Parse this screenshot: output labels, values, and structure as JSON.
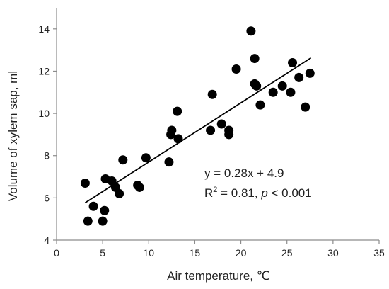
{
  "chart_data": {
    "type": "scatter",
    "xlabel": "Air temperature, ℃",
    "ylabel": "Volume of xylem sap, ml",
    "xlim": [
      0,
      35
    ],
    "ylim": [
      4,
      15
    ],
    "x_ticks": [
      0,
      5,
      10,
      15,
      20,
      25,
      30,
      35
    ],
    "y_ticks": [
      4,
      6,
      8,
      10,
      12,
      14
    ],
    "grid": false,
    "marker_color": "#000000",
    "points": [
      {
        "x": 3.1,
        "y": 6.7
      },
      {
        "x": 3.4,
        "y": 4.9
      },
      {
        "x": 4.0,
        "y": 5.6
      },
      {
        "x": 5.0,
        "y": 4.9
      },
      {
        "x": 5.2,
        "y": 5.4
      },
      {
        "x": 5.3,
        "y": 6.9
      },
      {
        "x": 6.0,
        "y": 6.8
      },
      {
        "x": 6.4,
        "y": 6.5
      },
      {
        "x": 6.8,
        "y": 6.2
      },
      {
        "x": 7.2,
        "y": 7.8
      },
      {
        "x": 8.8,
        "y": 6.6
      },
      {
        "x": 9.0,
        "y": 6.5
      },
      {
        "x": 9.7,
        "y": 7.9
      },
      {
        "x": 12.2,
        "y": 7.7
      },
      {
        "x": 12.4,
        "y": 9.0
      },
      {
        "x": 12.5,
        "y": 9.2
      },
      {
        "x": 13.1,
        "y": 10.1
      },
      {
        "x": 13.2,
        "y": 8.8
      },
      {
        "x": 16.7,
        "y": 9.2
      },
      {
        "x": 16.9,
        "y": 10.9
      },
      {
        "x": 17.9,
        "y": 9.5
      },
      {
        "x": 18.7,
        "y": 9.2
      },
      {
        "x": 18.7,
        "y": 9.0
      },
      {
        "x": 19.5,
        "y": 12.1
      },
      {
        "x": 21.1,
        "y": 13.9
      },
      {
        "x": 21.5,
        "y": 12.6
      },
      {
        "x": 21.5,
        "y": 11.4
      },
      {
        "x": 21.7,
        "y": 11.3
      },
      {
        "x": 22.1,
        "y": 10.4
      },
      {
        "x": 23.5,
        "y": 11.0
      },
      {
        "x": 24.5,
        "y": 11.3
      },
      {
        "x": 25.4,
        "y": 11.0
      },
      {
        "x": 25.6,
        "y": 12.4
      },
      {
        "x": 26.3,
        "y": 11.7
      },
      {
        "x": 27.0,
        "y": 10.3
      },
      {
        "x": 27.5,
        "y": 11.9
      }
    ],
    "trendline": {
      "slope": 0.28,
      "intercept": 4.9,
      "x_start": 3.1,
      "x_end": 27.6
    },
    "annotations": {
      "equation": "y = 0.28x + 4.9",
      "r2_prefix": "R",
      "r2_superscript": "2",
      "r2_value": " = 0.81, ",
      "p_symbol": "p",
      "p_value": " < 0.001"
    }
  }
}
